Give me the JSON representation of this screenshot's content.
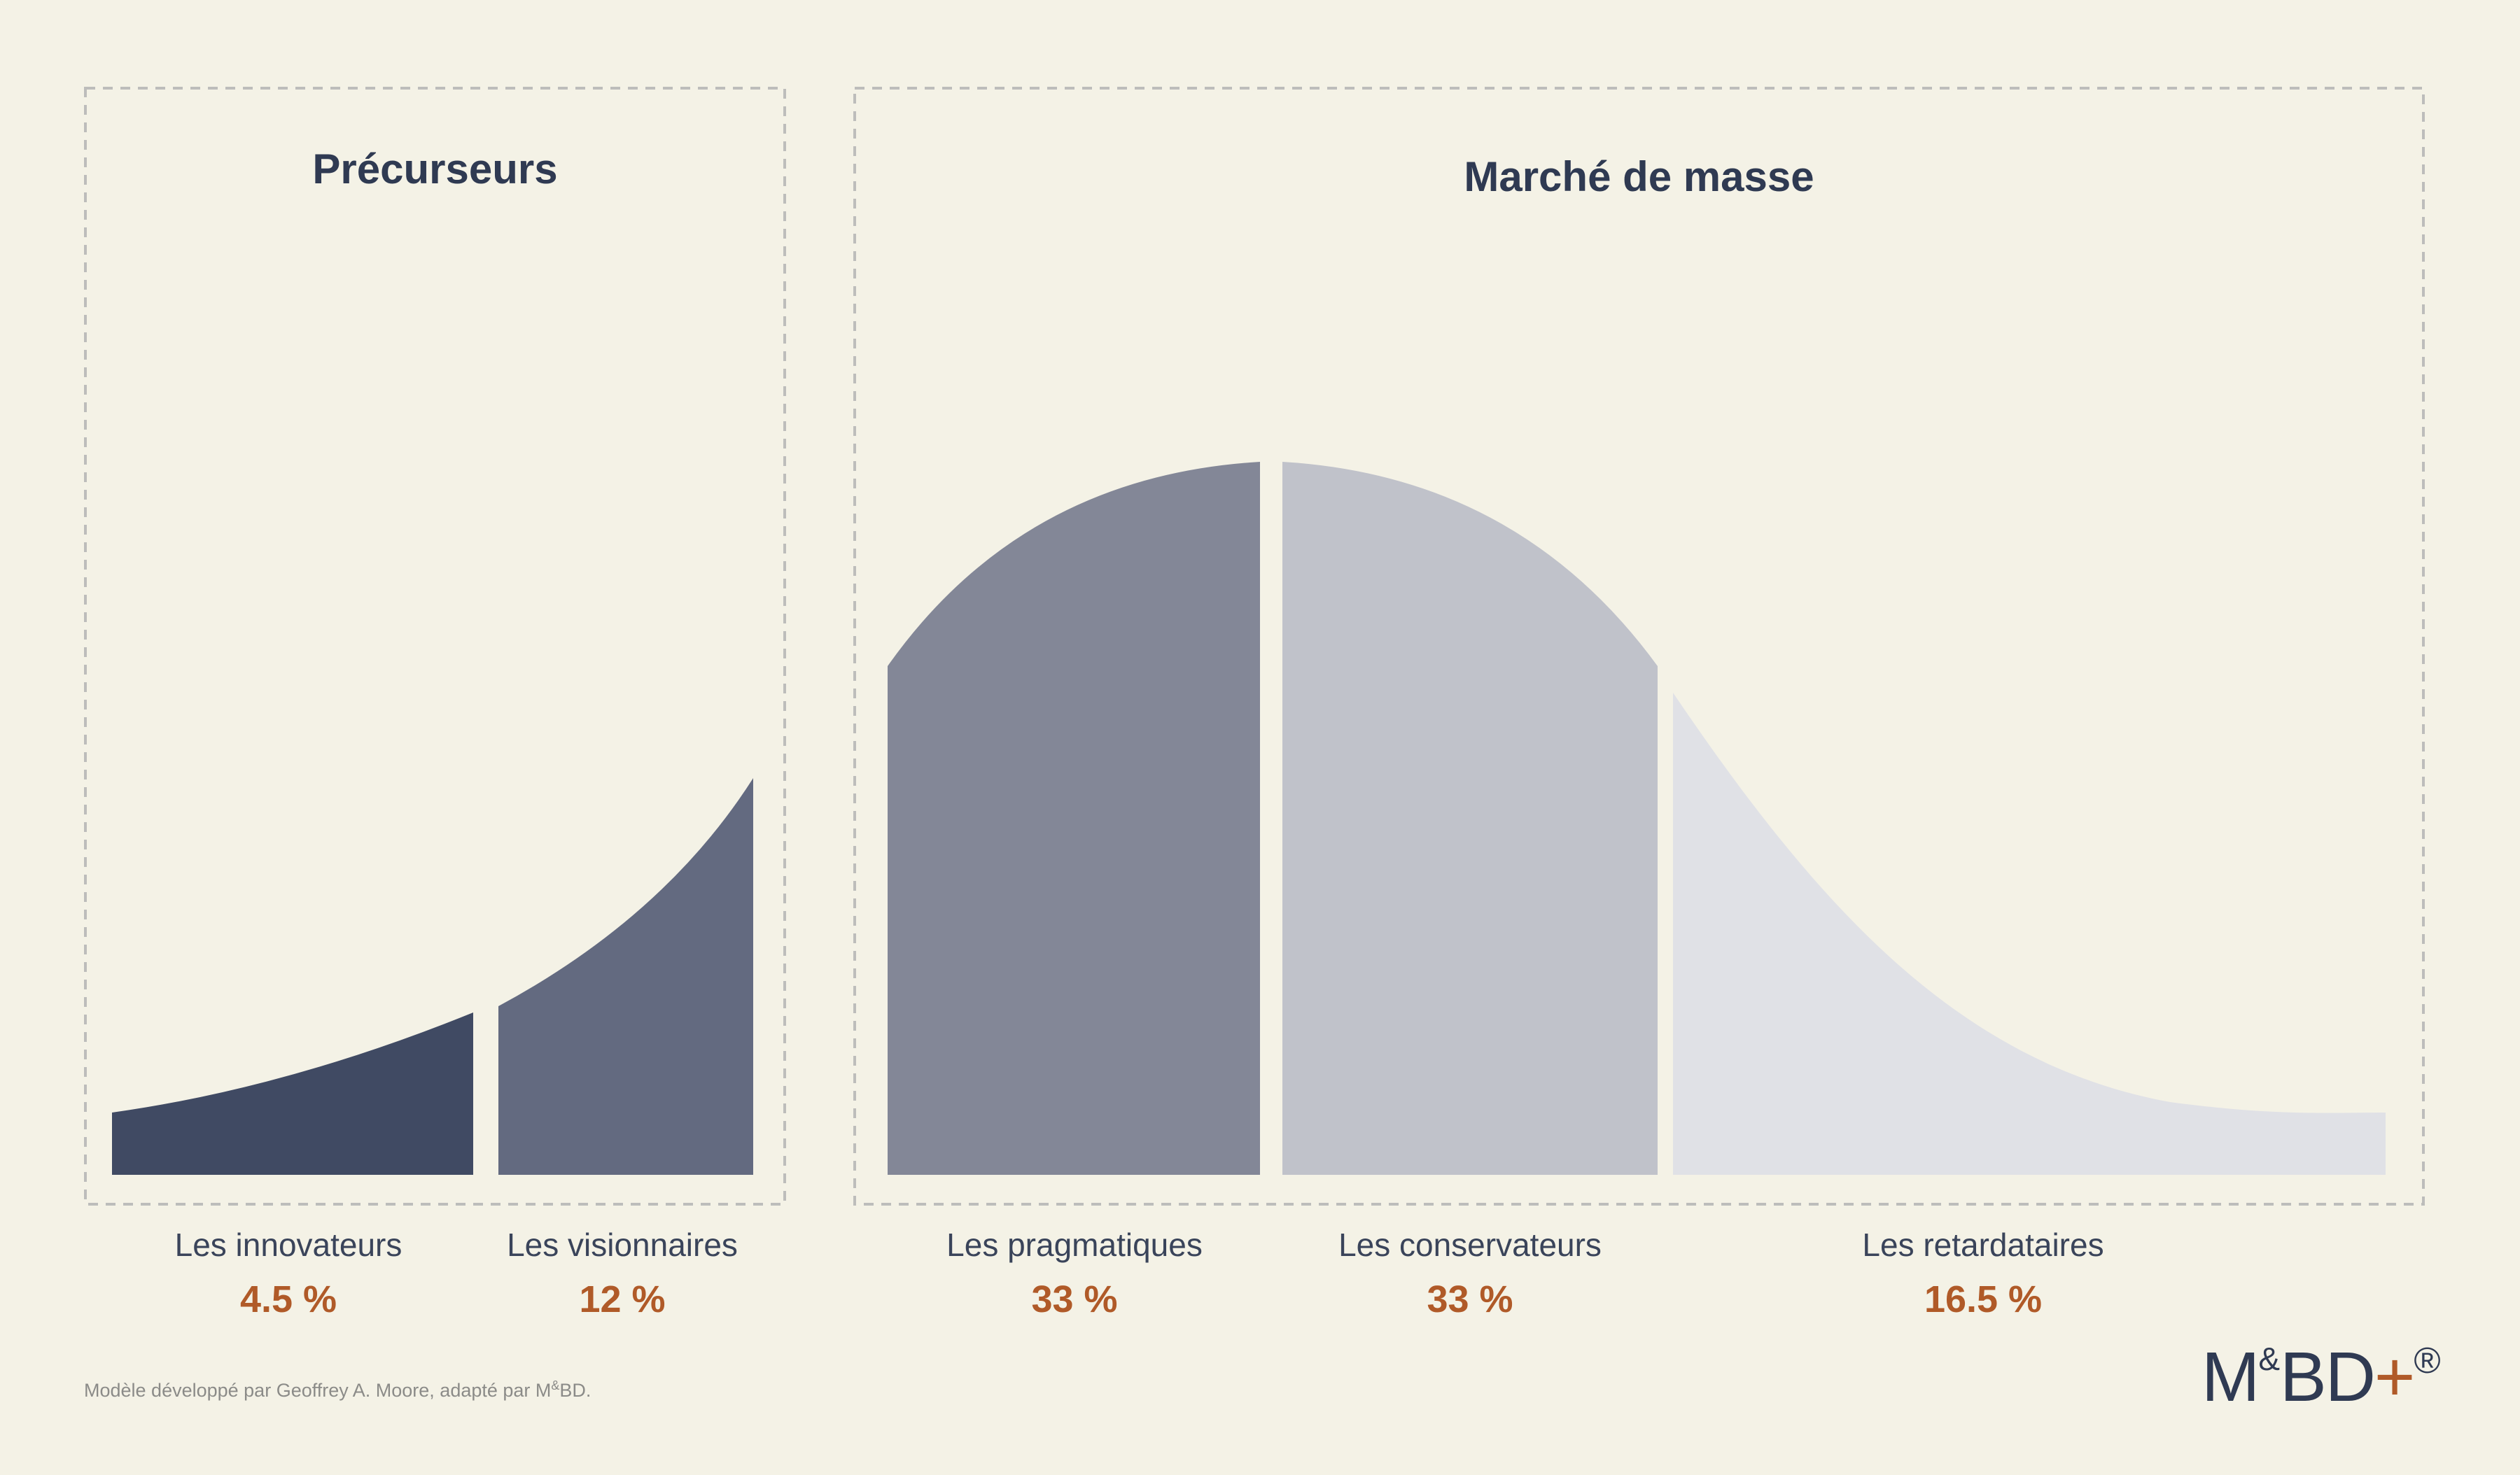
{
  "colors": {
    "background": "#f4f2e6",
    "title": "#2f3a52",
    "percent": "#b05a28",
    "box_border": "#bdbdbb"
  },
  "groups": {
    "early": {
      "title": "Précurseurs"
    },
    "mass": {
      "title": "Marché de masse"
    }
  },
  "segments": [
    {
      "label": "Les innovateurs",
      "percent": "4.5 %",
      "color": "#404a63"
    },
    {
      "label": "Les visionnaires",
      "percent": "12 %",
      "color": "#636a80"
    },
    {
      "label": "Les pragmatiques",
      "percent": "33 %",
      "color": "#838797"
    },
    {
      "label": "Les conservateurs",
      "percent": "33 %",
      "color": "#c0c2ca"
    },
    {
      "label": "Les retardataires",
      "percent": "16.5 %",
      "color": "#e0e1e6"
    }
  ],
  "footnote": {
    "text": "Modèle développé par Geoffrey A. Moore, adapté par M",
    "sup": "&",
    "suffix": "BD."
  },
  "logo": {
    "m": "M",
    "amp": "&",
    "bd": "BD",
    "plus": "+",
    "reg": "®"
  }
}
